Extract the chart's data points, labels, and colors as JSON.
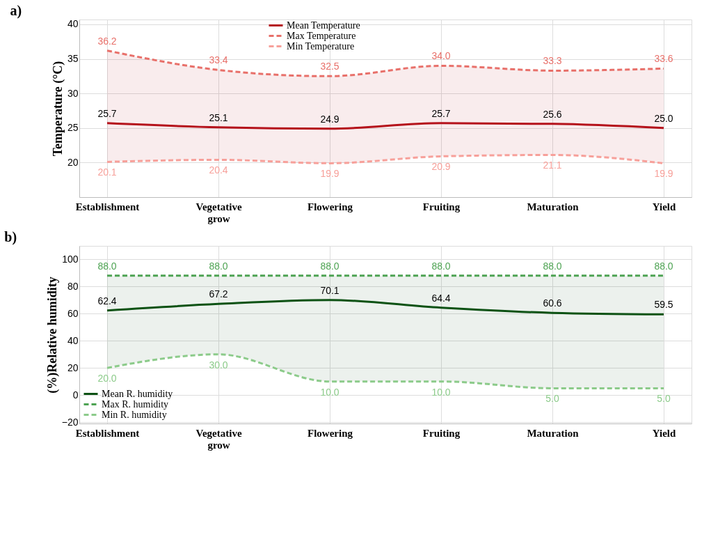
{
  "chart_data": [
    {
      "type": "line",
      "title": "a)",
      "ylabel": "Temperature (°C)",
      "categories": [
        "Establishment",
        "Vegetative grow",
        "Flowering",
        "Fruiting",
        "Maturation",
        "Yield"
      ],
      "ylim": [
        15,
        40.7
      ],
      "yticks": [
        20,
        25,
        30,
        35,
        40
      ],
      "grid": true,
      "legend": "top",
      "marker": "none",
      "series": [
        {
          "name": "Mean Temperature",
          "color": "#b5121b",
          "line_style": "solid",
          "values": [
            25.7,
            25.1,
            24.9,
            25.7,
            25.6,
            25.0
          ],
          "value_labels": [
            "25.7",
            "25.1",
            "24.9",
            "25.7",
            "25.6",
            "25.0"
          ],
          "lower": [
            20.1,
            20.4,
            19.9,
            20.9,
            21.1,
            19.9
          ],
          "upper": [
            36.2,
            33.4,
            32.5,
            34.0,
            33.3,
            33.6
          ]
        },
        {
          "name": "Max Temperature",
          "color": "#e8706a",
          "line_style": "dashed",
          "values": [
            36.2,
            33.4,
            32.5,
            34.0,
            33.3,
            33.6
          ],
          "value_labels": [
            "36.2",
            "33.4",
            "32.5",
            "34.0",
            "33.3",
            "33.6"
          ]
        },
        {
          "name": "Min Temperature",
          "color": "#f7a09a",
          "line_style": "dashed",
          "values": [
            20.1,
            20.4,
            19.9,
            20.9,
            21.1,
            19.9
          ],
          "value_labels": [
            "20.1",
            "20.4",
            "19.9",
            "20.9",
            "21.1",
            "19.9"
          ]
        }
      ]
    },
    {
      "type": "line",
      "title": "b)",
      "ylabel": "(%)Relative humidity",
      "categories": [
        "Establishment",
        "Vegetative grow",
        "Flowering",
        "Fruiting",
        "Maturation",
        "Yield"
      ],
      "ylim": [
        -21,
        110
      ],
      "yticks": [
        -20,
        0,
        20,
        40,
        60,
        80,
        100
      ],
      "grid": true,
      "legend": "bottom left",
      "marker": "none",
      "series": [
        {
          "name": "Mean R. humidity",
          "color": "#0d5214",
          "line_style": "solid",
          "values": [
            62.4,
            67.2,
            70.1,
            64.4,
            60.6,
            59.5
          ],
          "value_labels": [
            "62.4",
            "67.2",
            "70.1",
            "64.4",
            "60.6",
            "59.5"
          ],
          "lower": [
            20.0,
            30.0,
            10.0,
            10.0,
            5.0,
            5.0
          ],
          "upper": [
            88.0,
            88.0,
            88.0,
            88.0,
            88.0,
            88.0
          ]
        },
        {
          "name": "Max R. humidity",
          "color": "#4ea353",
          "line_style": "dashed",
          "values": [
            88.0,
            88.0,
            88.0,
            88.0,
            88.0,
            88.0
          ],
          "value_labels": [
            "88.0",
            "88.0",
            "88.0",
            "88.0",
            "88.0",
            "88.0"
          ]
        },
        {
          "name": "Min R. humidity",
          "color": "#8ccb8a",
          "line_style": "dashed",
          "values": [
            20.0,
            30.0,
            10.0,
            10.0,
            5.0,
            5.0
          ],
          "value_labels": [
            "20.0",
            "30.0",
            "10.0",
            "10.0",
            "5.0",
            "5.0"
          ]
        }
      ]
    }
  ]
}
